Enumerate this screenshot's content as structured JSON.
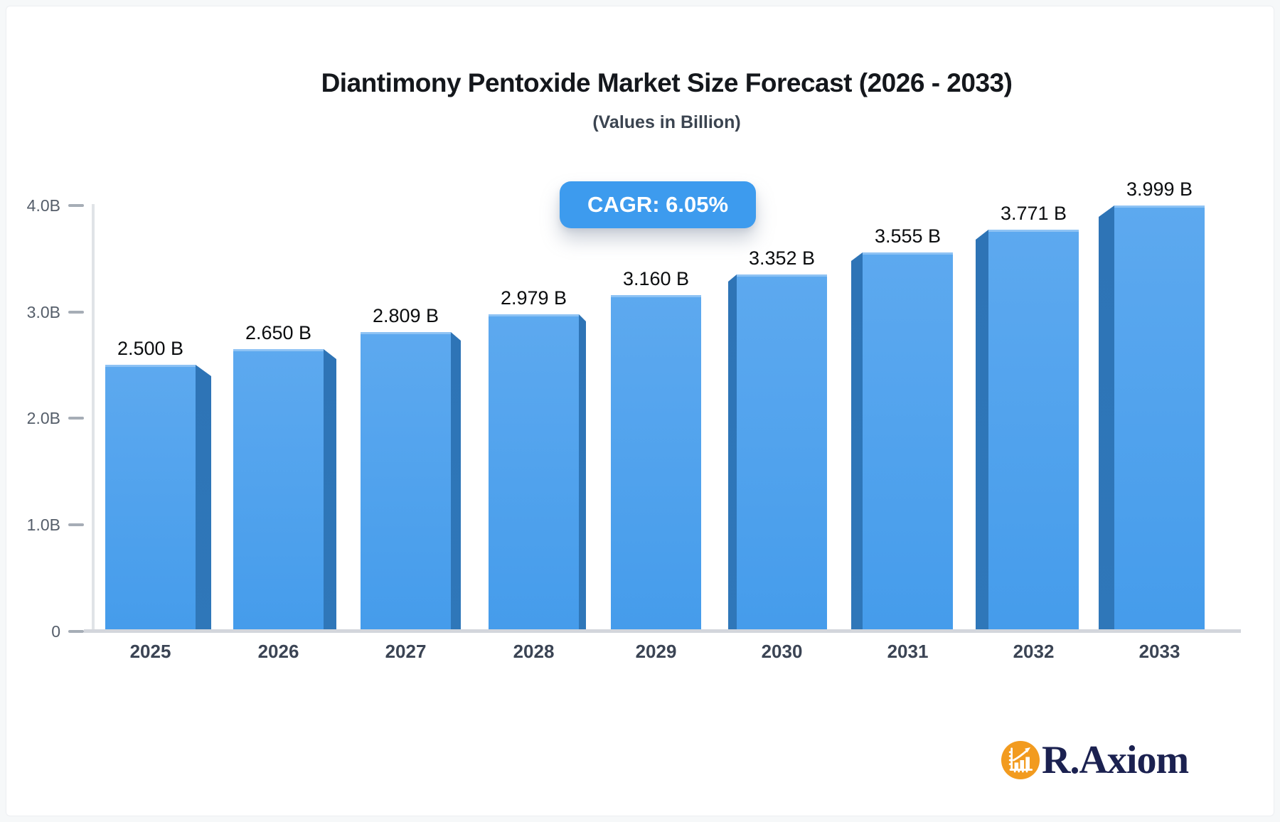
{
  "header": {
    "title": "Diantimony Pentoxide Market Size Forecast (2026 - 2033)",
    "subtitle": "(Values in Billion)",
    "cagr_badge": "CAGR: 6.05%"
  },
  "brand": {
    "name": "R.Axiom",
    "icon": "bar-chart-growth-icon"
  },
  "colors": {
    "title_text": "#14171c",
    "subtitle_text": "#3b4450",
    "badge_bg": "#3d9bee",
    "badge_text": "#ffffff",
    "bar_face_top": "#5da9ef",
    "bar_face_bottom": "#459ceb",
    "bar_side": "#2e74b6",
    "baseline": "#d3d6dc",
    "axis_line": "#e0e3e7",
    "tick_dash": "#a6adb6",
    "tick_text": "#555e6a",
    "x_label_text": "#3b4454",
    "value_label_text": "#0b0d0f",
    "brand_text": "#1b2150",
    "brand_icon_bg": "#f29b1f"
  },
  "chart_data": {
    "type": "bar",
    "style": "3d-perspective-bars",
    "title": "Diantimony Pentoxide Market Size Forecast (2026 - 2033)",
    "subtitle": "(Values in Billion)",
    "annotation": "CAGR: 6.05%",
    "unit": "Billion",
    "categories": [
      "2025",
      "2026",
      "2027",
      "2028",
      "2029",
      "2030",
      "2031",
      "2032",
      "2033"
    ],
    "values": [
      2.5,
      2.65,
      2.809,
      2.979,
      3.16,
      3.352,
      3.555,
      3.771,
      3.999
    ],
    "value_labels": [
      "2.500 B",
      "2.650 B",
      "2.809 B",
      "2.979 B",
      "3.160 B",
      "3.352 B",
      "3.555 B",
      "3.771 B",
      "3.999 B"
    ],
    "xlabel": "",
    "ylabel": "",
    "ylim": [
      0,
      4.3
    ],
    "y_ticks": [
      {
        "label": "4.0B",
        "value": 4.0
      },
      {
        "label": "3.0B",
        "value": 3.0
      },
      {
        "label": "2.0B",
        "value": 2.0
      },
      {
        "label": "1.0B",
        "value": 1.0
      },
      {
        "label": "0",
        "value": 0.0
      }
    ],
    "grid": false,
    "legend": false
  }
}
